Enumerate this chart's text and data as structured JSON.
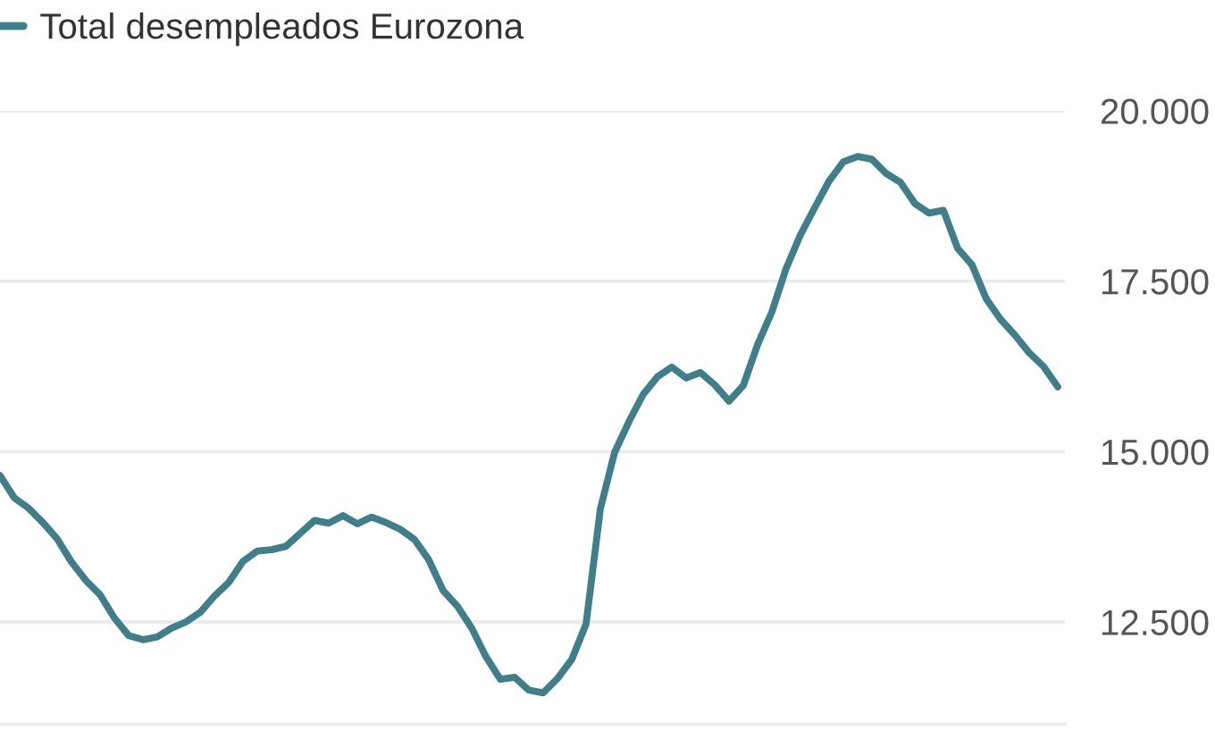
{
  "chart_data": {
    "type": "line",
    "categories": [
      null,
      null,
      null,
      null,
      null,
      null,
      null,
      null,
      null,
      null,
      null,
      null,
      null,
      null,
      null,
      null,
      null,
      null,
      null,
      null,
      null,
      null,
      null,
      null,
      null,
      null,
      null,
      null,
      null,
      null,
      null,
      null,
      null,
      null,
      null,
      null,
      null,
      null,
      null,
      null,
      null,
      null,
      null,
      null,
      null,
      null,
      null,
      null,
      null,
      null,
      null,
      null,
      null,
      null,
      null,
      null,
      null,
      null,
      null,
      null,
      null,
      null,
      null,
      null,
      null,
      null,
      null,
      null,
      null,
      null,
      null,
      null,
      null,
      null,
      null
    ],
    "series": [
      {
        "name": "Total desempleados Eurozona",
        "color": "#3f7f8c",
        "values": [
          14650,
          14320,
          14170,
          13960,
          13720,
          13380,
          13110,
          12900,
          12560,
          12300,
          12240,
          12280,
          12410,
          12500,
          12640,
          12880,
          13080,
          13390,
          13540,
          13560,
          13610,
          13800,
          13990,
          13950,
          14060,
          13940,
          14040,
          13960,
          13860,
          13710,
          13410,
          12960,
          12730,
          12410,
          11990,
          11660,
          11690,
          11500,
          11460,
          11670,
          11950,
          12470,
          14160,
          14990,
          15440,
          15840,
          16100,
          16240,
          16080,
          16160,
          15980,
          15740,
          15970,
          16570,
          17050,
          17690,
          18180,
          18580,
          18970,
          19250,
          19330,
          19290,
          19080,
          18950,
          18640,
          18500,
          18540,
          17980,
          17740,
          17240,
          16940,
          16710,
          16450,
          16250,
          15950
        ]
      }
    ],
    "ylim": [
      11000,
      20000
    ],
    "yticks": [
      {
        "value": 12500,
        "label": "12.500"
      },
      {
        "value": 15000,
        "label": "15.000"
      },
      {
        "value": 17500,
        "label": "17.500"
      },
      {
        "value": 20000,
        "label": "20.000"
      }
    ],
    "grid": "y",
    "legend": "top left",
    "tick_labels": "y",
    "line_style": "solid"
  }
}
